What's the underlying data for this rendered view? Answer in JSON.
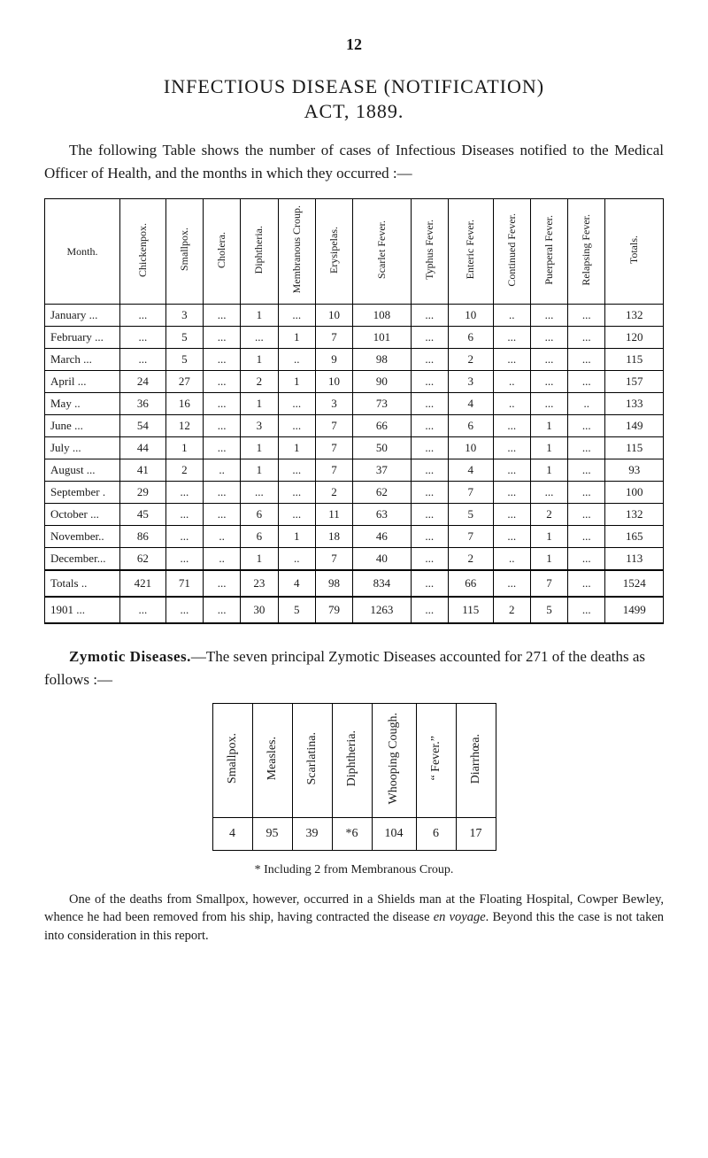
{
  "page_number": "12",
  "title_line1": "INFECTIOUS DISEASE (NOTIFICATION)",
  "title_line2": "ACT, 1889.",
  "intro": "The following Table shows the number of cases of Infectious Diseases notified to the Medical Officer of Health, and the months in which they occurred :—",
  "main_table": {
    "headers": [
      "Month.",
      "Chickenpox.",
      "Smallpox.",
      "Cholera.",
      "Diphtheria.",
      "Membranous Croup.",
      "Erysipelas.",
      "Scarlet Fever.",
      "Typhus Fever.",
      "Enteric Fever.",
      "Continued Fever.",
      "Puerperal Fever.",
      "Relapsing Fever.",
      "Totals."
    ],
    "rows": [
      [
        "January ...",
        "...",
        "3",
        "...",
        "1",
        "...",
        "10",
        "108",
        "...",
        "10",
        "..",
        "...",
        "...",
        "132"
      ],
      [
        "February ...",
        "...",
        "5",
        "...",
        "...",
        "1",
        "7",
        "101",
        "...",
        "6",
        "...",
        "...",
        "...",
        "120"
      ],
      [
        "March    ...",
        "...",
        "5",
        "...",
        "1",
        "..",
        "9",
        "98",
        "...",
        "2",
        "...",
        "...",
        "...",
        "115"
      ],
      [
        "April      ...",
        "24",
        "27",
        "...",
        "2",
        "1",
        "10",
        "90",
        "...",
        "3",
        "..",
        "...",
        "...",
        "157"
      ],
      [
        "May        ..",
        "36",
        "16",
        "...",
        "1",
        "...",
        "3",
        "73",
        "...",
        "4",
        "..",
        "...",
        "..",
        "133"
      ],
      [
        "June       ...",
        "54",
        "12",
        "...",
        "3",
        "...",
        "7",
        "66",
        "...",
        "6",
        "...",
        "1",
        "...",
        "149"
      ],
      [
        "July        ...",
        "44",
        "1",
        "...",
        "1",
        "1",
        "7",
        "50",
        "...",
        "10",
        "...",
        "1",
        "...",
        "115"
      ],
      [
        "August   ...",
        "41",
        "2",
        "..",
        "1",
        "...",
        "7",
        "37",
        "...",
        "4",
        "...",
        "1",
        "...",
        "93"
      ],
      [
        "September .",
        "29",
        "...",
        "...",
        "...",
        "...",
        "2",
        "62",
        "...",
        "7",
        "...",
        "...",
        "...",
        "100"
      ],
      [
        "October  ...",
        "45",
        "...",
        "...",
        "6",
        "...",
        "11",
        "63",
        "...",
        "5",
        "...",
        "2",
        "...",
        "132"
      ],
      [
        "November..",
        "86",
        "...",
        "..",
        "6",
        "1",
        "18",
        "46",
        "...",
        "7",
        "...",
        "1",
        "...",
        "165"
      ],
      [
        "December...",
        "62",
        "...",
        "..",
        "1",
        "..",
        "7",
        "40",
        "...",
        "2",
        "..",
        "1",
        "...",
        "113"
      ]
    ],
    "totals_row": [
      "Totals ..",
      "421",
      "71",
      "...",
      "23",
      "4",
      "98",
      "834",
      "...",
      "66",
      "...",
      "7",
      "...",
      "1524"
    ],
    "year_row": [
      "1901  ...",
      "...",
      "...",
      "...",
      "30",
      "5",
      "79",
      "1263",
      "...",
      "115",
      "2",
      "5",
      "...",
      "1499"
    ]
  },
  "zymotic_text": "Zymotic Diseases.—The seven principal Zymotic Diseases accounted for 271 of the deaths as follows :—",
  "zymotic_label": "Zymotic Diseases.",
  "zymotic_rest": "—The seven principal Zymotic Diseases accounted for 271 of the deaths as follows :—",
  "zymotic_table": {
    "headers": [
      "Smallpox.",
      "Measles.",
      "Scarlatina.",
      "Diphtheria.",
      "Whooping Cough.",
      "“ Fever.”",
      "Diarrhœa."
    ],
    "values": [
      "4",
      "95",
      "39",
      "*6",
      "104",
      "6",
      "17"
    ]
  },
  "footnote_star": "* Including 2 from Membranous Croup.",
  "footnote": "One of the deaths from Smallpox, however, occurred in a Shields man at the Floating Hospital, Cowper Bewley, whence he had been removed from his ship, having contracted the disease en voyage. Beyond this the case is not taken into consideration in this report."
}
